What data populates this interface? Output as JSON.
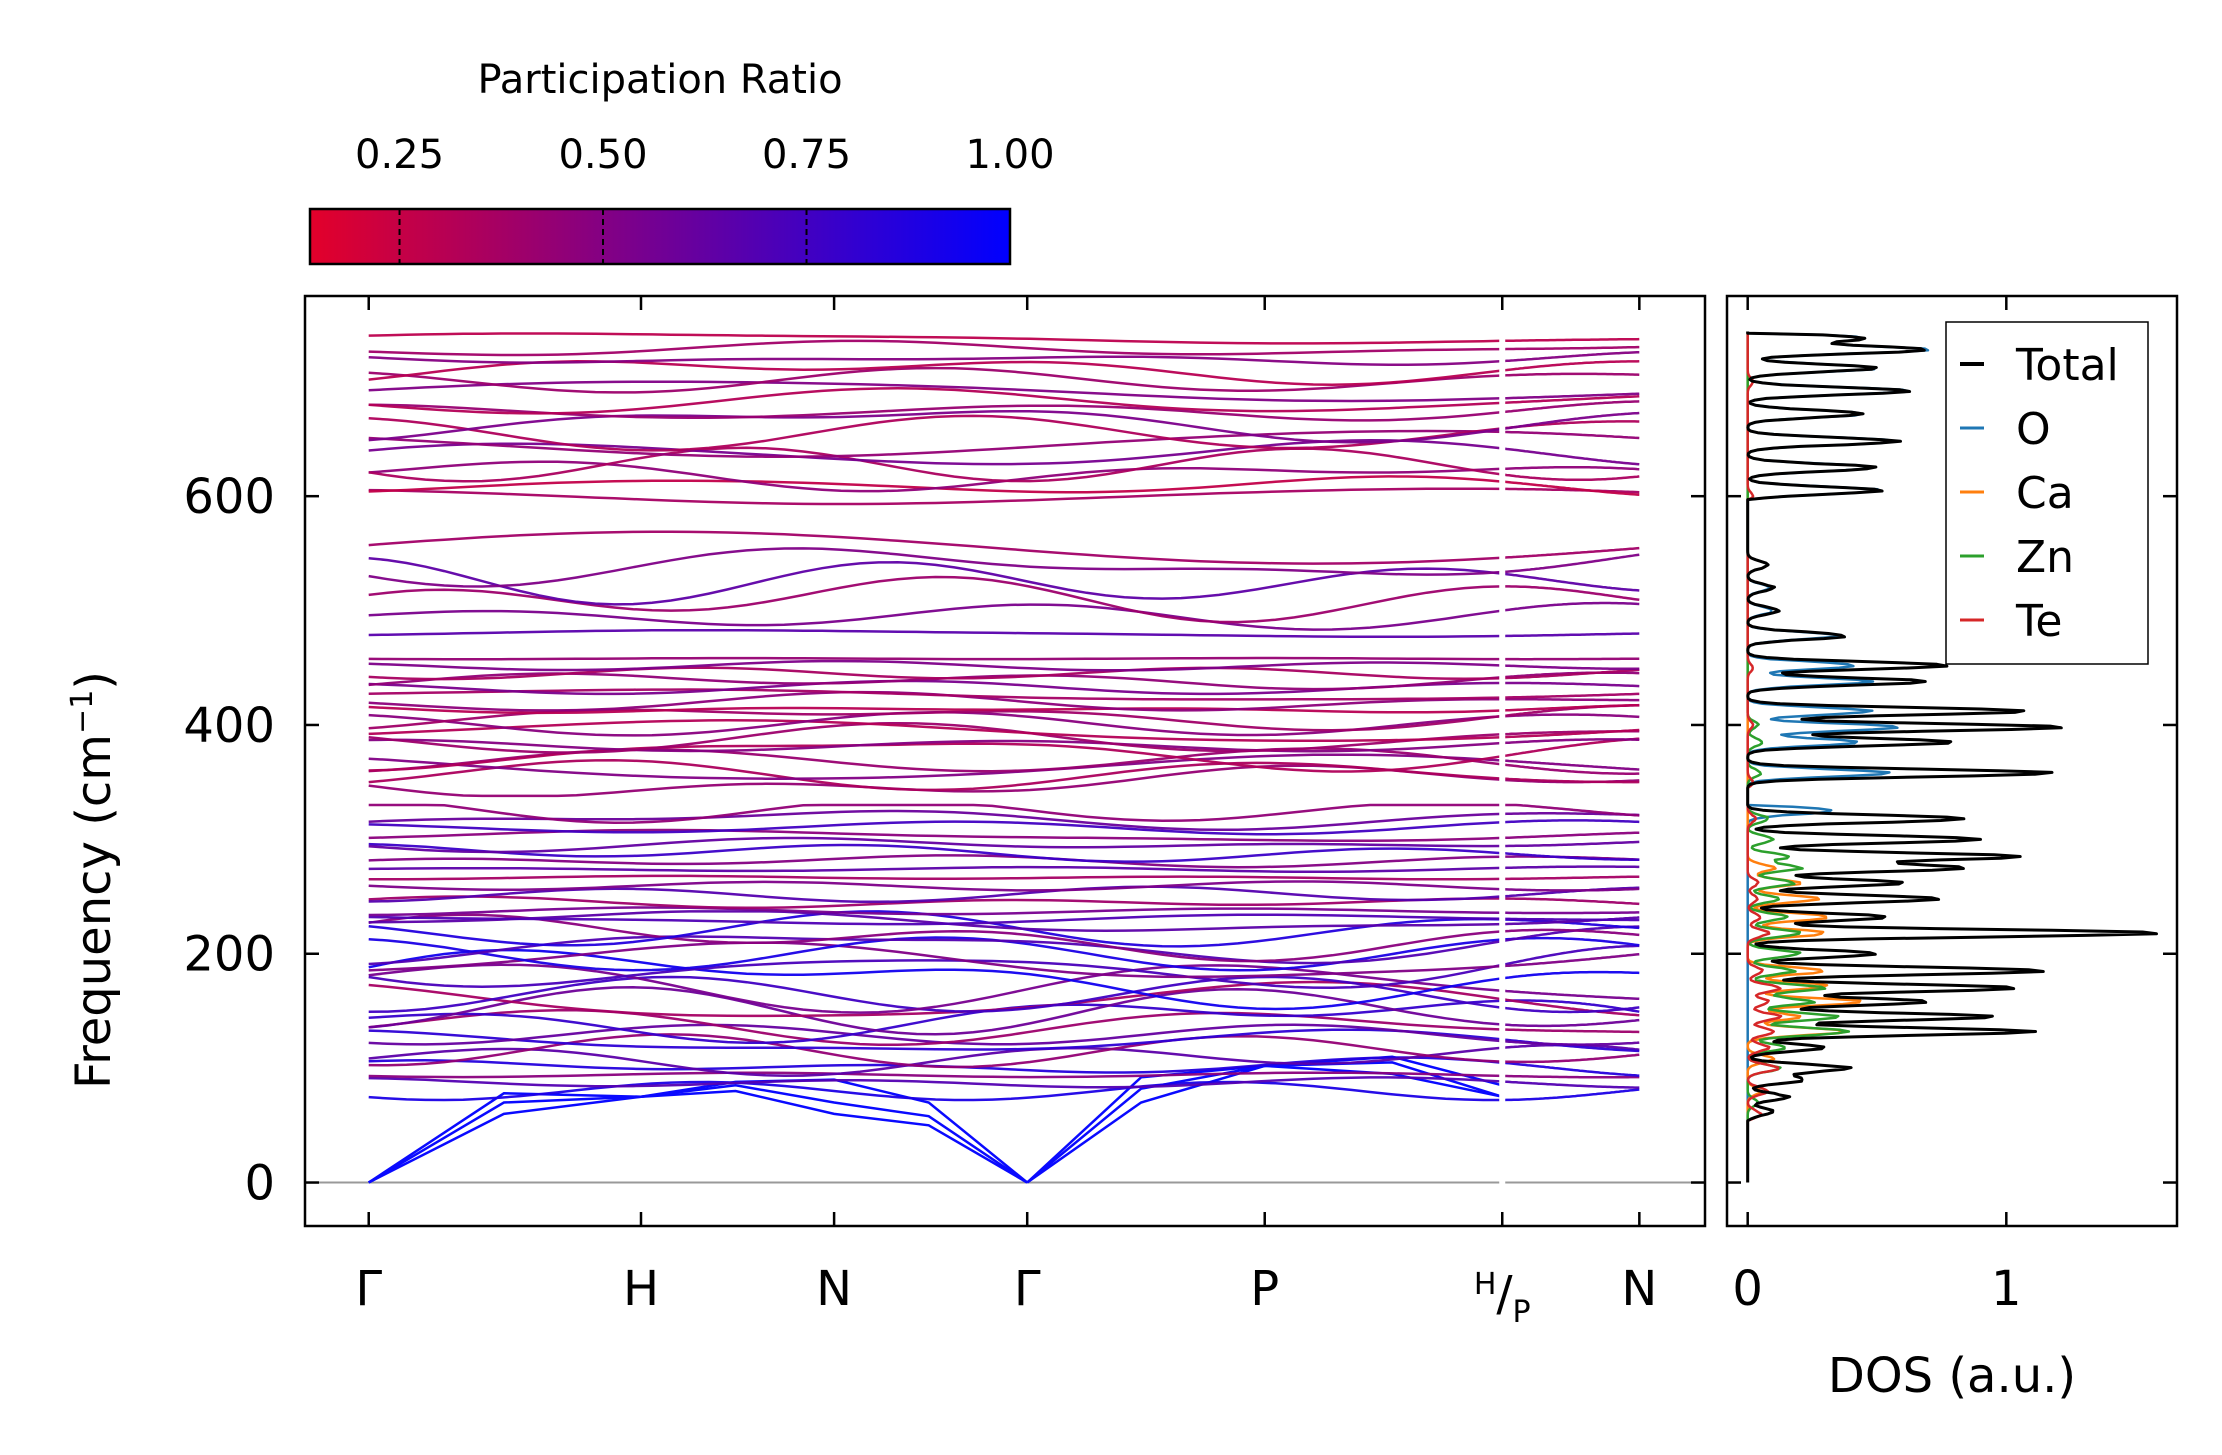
{
  "chart_data": {
    "type": "line",
    "colorbar": {
      "title": "Participation Ratio",
      "ticks": [
        0.25,
        0.5,
        0.75,
        1.0
      ],
      "tick_labels": [
        "0.25",
        "0.50",
        "0.75",
        "1.00"
      ],
      "range": [
        0.14,
        1.0
      ],
      "colors": [
        "#e3002a",
        "#0000ff"
      ]
    },
    "bands": {
      "ylabel_pre": "Frequency (cm",
      "ylabel_sup": "−1",
      "ylabel_post": ")",
      "ylim": [
        -38,
        775
      ],
      "yticks": [
        0,
        200,
        400,
        600
      ],
      "ytick_labels": [
        "0",
        "200",
        "400",
        "600"
      ],
      "kpath": [
        {
          "pos": 0.0,
          "label": "Γ"
        },
        {
          "pos": 1.41,
          "label": "H"
        },
        {
          "pos": 2.41,
          "label": "N"
        },
        {
          "pos": 3.41,
          "label": "Γ"
        },
        {
          "pos": 4.64,
          "label": "P"
        },
        {
          "pos": 5.87,
          "label": "H",
          "label2": "P",
          "split": true
        },
        {
          "pos": 6.58,
          "label": "N"
        }
      ],
      "xlim": [
        -0.33,
        6.92
      ],
      "acoustic": [
        {
          "pts": [
            [
              0,
              0
            ],
            [
              0.7,
              60
            ],
            [
              1.41,
              75
            ],
            [
              1.9,
              80
            ],
            [
              2.41,
              60
            ],
            [
              2.9,
              50
            ],
            [
              3.41,
              0
            ]
          ]
        },
        {
          "pts": [
            [
              0,
              0
            ],
            [
              0.7,
              70
            ],
            [
              1.41,
              75
            ],
            [
              1.9,
              85
            ],
            [
              2.41,
              70
            ],
            [
              2.9,
              58
            ],
            [
              3.41,
              0
            ]
          ]
        },
        {
          "pts": [
            [
              0,
              0
            ],
            [
              0.7,
              78
            ],
            [
              1.41,
              75
            ],
            [
              1.9,
              88
            ],
            [
              2.41,
              90
            ],
            [
              2.9,
              70
            ],
            [
              3.41,
              0
            ]
          ]
        },
        {
          "pts": [
            [
              3.41,
              0
            ],
            [
              4.0,
              70
            ],
            [
              4.64,
              102
            ],
            [
              5.3,
              95
            ],
            [
              5.87,
              75
            ]
          ]
        },
        {
          "pts": [
            [
              3.41,
              0
            ],
            [
              4.0,
              82
            ],
            [
              4.64,
              102
            ],
            [
              5.3,
              105
            ],
            [
              5.87,
              75
            ]
          ]
        },
        {
          "pts": [
            [
              3.41,
              0
            ],
            [
              4.0,
              92
            ],
            [
              4.64,
              102
            ],
            [
              5.3,
              110
            ],
            [
              5.87,
              85
            ]
          ]
        }
      ],
      "groups": [
        {
          "lo": 80,
          "hi": 228,
          "n": 22,
          "pr": [
            0.35,
            0.95
          ],
          "amp": 18
        },
        {
          "lo": 230,
          "hi": 325,
          "n": 14,
          "pr": [
            0.35,
            0.78
          ],
          "amp": 10
        },
        {
          "lo": 350,
          "hi": 458,
          "n": 18,
          "pr": [
            0.3,
            0.55
          ],
          "amp": 12
        },
        {
          "lo": 480,
          "hi": 555,
          "n": 6,
          "pr": [
            0.35,
            0.72
          ],
          "amp": 30
        },
        {
          "lo": 600,
          "hi": 738,
          "n": 16,
          "pr": [
            0.25,
            0.55
          ],
          "amp": 12
        }
      ]
    },
    "dos": {
      "xlabel": "DOS (a.u.)",
      "xlim": [
        -0.08,
        1.66
      ],
      "xticks": [
        0,
        1
      ],
      "xtick_labels": [
        "0",
        "1"
      ],
      "legend_loc": "upper-right",
      "series": [
        {
          "name": "Total",
          "color": "#000000",
          "peaks": [
            [
              62,
              0.1
            ],
            [
              75,
              0.15
            ],
            [
              90,
              0.22
            ],
            [
              100,
              0.4
            ],
            [
              118,
              0.3
            ],
            [
              132,
              1.1
            ],
            [
              145,
              0.95
            ],
            [
              158,
              0.7
            ],
            [
              170,
              1.05
            ],
            [
              185,
              1.15
            ],
            [
              200,
              0.5
            ],
            [
              218,
              1.6
            ],
            [
              232,
              0.55
            ],
            [
              248,
              0.75
            ],
            [
              262,
              0.6
            ],
            [
              275,
              0.85
            ],
            [
              285,
              1.05
            ],
            [
              300,
              0.9
            ],
            [
              318,
              0.85
            ],
            [
              358,
              1.18
            ],
            [
              385,
              0.8
            ],
            [
              398,
              1.22
            ],
            [
              412,
              1.08
            ],
            [
              438,
              0.7
            ],
            [
              452,
              0.78
            ],
            [
              478,
              0.38
            ],
            [
              500,
              0.12
            ],
            [
              520,
              0.1
            ],
            [
              540,
              0.08
            ],
            [
              605,
              0.52
            ],
            [
              625,
              0.5
            ],
            [
              648,
              0.58
            ],
            [
              672,
              0.45
            ],
            [
              692,
              0.62
            ],
            [
              712,
              0.5
            ],
            [
              728,
              0.7
            ],
            [
              738,
              0.45
            ]
          ]
        },
        {
          "name": "O",
          "color": "#1f77b4",
          "peaks": [
            [
              325,
              0.32
            ],
            [
              358,
              0.55
            ],
            [
              385,
              0.42
            ],
            [
              398,
              0.6
            ],
            [
              412,
              0.48
            ],
            [
              438,
              0.48
            ],
            [
              452,
              0.42
            ],
            [
              478,
              0.35
            ],
            [
              500,
              0.1
            ],
            [
              520,
              0.08
            ],
            [
              605,
              0.52
            ],
            [
              625,
              0.5
            ],
            [
              648,
              0.58
            ],
            [
              672,
              0.45
            ],
            [
              692,
              0.62
            ],
            [
              712,
              0.5
            ],
            [
              728,
              0.7
            ],
            [
              738,
              0.45
            ]
          ]
        },
        {
          "name": "Ca",
          "color": "#ff7f0e",
          "peaks": [
            [
              80,
              0.05
            ],
            [
              108,
              0.1
            ],
            [
              132,
              0.38
            ],
            [
              145,
              0.2
            ],
            [
              158,
              0.45
            ],
            [
              172,
              0.3
            ],
            [
              185,
              0.3
            ],
            [
              218,
              0.3
            ],
            [
              232,
              0.32
            ],
            [
              248,
              0.28
            ],
            [
              262,
              0.2
            ],
            [
              275,
              0.1
            ]
          ]
        },
        {
          "name": "Zn",
          "color": "#2ca02c",
          "peaks": [
            [
              70,
              0.04
            ],
            [
              100,
              0.12
            ],
            [
              118,
              0.15
            ],
            [
              132,
              0.4
            ],
            [
              145,
              0.35
            ],
            [
              158,
              0.25
            ],
            [
              170,
              0.3
            ],
            [
              185,
              0.18
            ],
            [
              200,
              0.2
            ],
            [
              218,
              0.2
            ],
            [
              232,
              0.15
            ],
            [
              248,
              0.12
            ],
            [
              262,
              0.18
            ],
            [
              275,
              0.2
            ],
            [
              285,
              0.15
            ],
            [
              300,
              0.1
            ],
            [
              318,
              0.08
            ],
            [
              358,
              0.05
            ],
            [
              385,
              0.06
            ],
            [
              400,
              0.04
            ]
          ]
        },
        {
          "name": "Te",
          "color": "#d62728",
          "peaks": [
            [
              60,
              0.05
            ],
            [
              80,
              0.08
            ],
            [
              100,
              0.12
            ],
            [
              118,
              0.08
            ],
            [
              132,
              0.1
            ],
            [
              145,
              0.12
            ],
            [
              158,
              0.08
            ],
            [
              170,
              0.12
            ],
            [
              185,
              0.06
            ],
            [
              218,
              0.08
            ],
            [
              232,
              0.05
            ],
            [
              248,
              0.04
            ],
            [
              262,
              0.04
            ],
            [
              318,
              0.03
            ],
            [
              350,
              0.02
            ],
            [
              400,
              0.02
            ],
            [
              450,
              0.02
            ],
            [
              600,
              0.02
            ],
            [
              700,
              0.02
            ]
          ]
        }
      ]
    }
  }
}
